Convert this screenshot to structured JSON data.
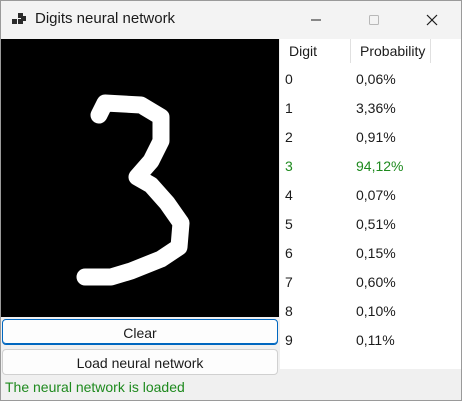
{
  "window": {
    "title": "Digits neural network"
  },
  "icons": {
    "app": "app-icon",
    "minimize": "minimize-icon",
    "maximize": "maximize-icon",
    "close": "close-icon"
  },
  "grid": {
    "headers": {
      "digit": "Digit",
      "probability": "Probability"
    },
    "rows": [
      {
        "digit": "0",
        "probability": "0,06%"
      },
      {
        "digit": "1",
        "probability": "3,36%"
      },
      {
        "digit": "2",
        "probability": "0,91%"
      },
      {
        "digit": "3",
        "probability": "94,12%"
      },
      {
        "digit": "4",
        "probability": "0,07%"
      },
      {
        "digit": "5",
        "probability": "0,51%"
      },
      {
        "digit": "6",
        "probability": "0,15%"
      },
      {
        "digit": "7",
        "probability": "0,60%"
      },
      {
        "digit": "8",
        "probability": "0,10%"
      },
      {
        "digit": "9",
        "probability": "0,11%"
      }
    ],
    "highlight_color": "#1e8a1e"
  },
  "buttons": {
    "clear": "Clear",
    "load": "Load neural network"
  },
  "status": {
    "text": "The neural network is loaded",
    "color": "#1e8a1e"
  }
}
